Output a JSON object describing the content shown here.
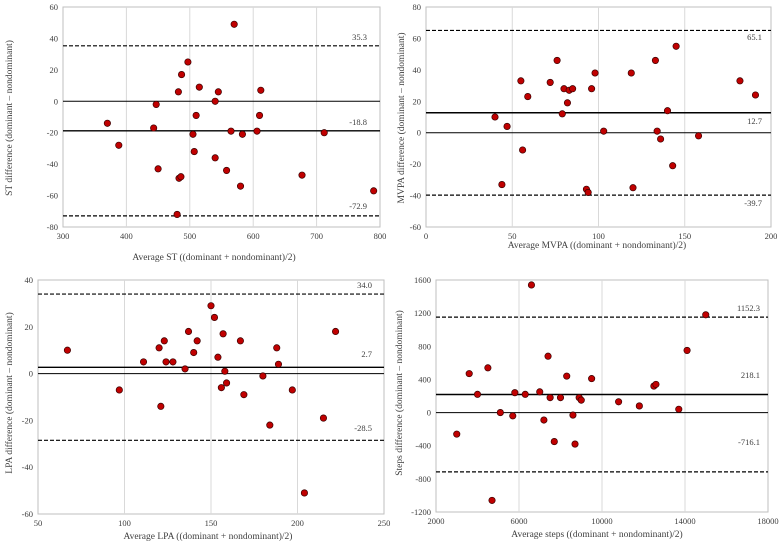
{
  "chart_data": [
    {
      "id": "st",
      "type": "scatter",
      "title": "",
      "xlabel": "Average ST ((dominant + nondominant)/2)",
      "ylabel": "ST difference (dominant – nondominant)",
      "xlim": [
        300,
        800
      ],
      "ylim": [
        -80,
        60
      ],
      "xticks": [
        300,
        400,
        500,
        600,
        700,
        800
      ],
      "yticks": [
        -80,
        -60,
        -40,
        -20,
        0,
        20,
        40,
        60
      ],
      "mean": -18.8,
      "upper_loa": 35.3,
      "lower_loa": -72.9,
      "mean_label": "-18.8",
      "upper_label": "35.3",
      "lower_label": "-72.9",
      "points": [
        [
          370,
          -14
        ],
        [
          388,
          -28
        ],
        [
          443,
          -17
        ],
        [
          447,
          -2
        ],
        [
          450,
          -43
        ],
        [
          480,
          -72
        ],
        [
          482,
          6
        ],
        [
          483,
          -49
        ],
        [
          486,
          -48
        ],
        [
          487,
          17
        ],
        [
          497,
          25
        ],
        [
          505,
          -21
        ],
        [
          507,
          -32
        ],
        [
          510,
          -9
        ],
        [
          515,
          9
        ],
        [
          540,
          -36
        ],
        [
          540,
          0
        ],
        [
          545,
          6
        ],
        [
          558,
          -44
        ],
        [
          565,
          -19
        ],
        [
          570,
          49
        ],
        [
          580,
          -54
        ],
        [
          583,
          -21
        ],
        [
          606,
          -19
        ],
        [
          610,
          -9
        ],
        [
          612,
          7
        ],
        [
          677,
          -47
        ],
        [
          712,
          -20
        ],
        [
          790,
          -57
        ]
      ]
    },
    {
      "id": "mvpa",
      "type": "scatter",
      "title": "",
      "xlabel": "Average MVPA ((dominant + nondominant)/2)",
      "ylabel": "MVPA difference (dominant – nondominant)",
      "xlim": [
        0,
        200
      ],
      "ylim": [
        -60,
        80
      ],
      "xticks": [
        0,
        50,
        100,
        150,
        200
      ],
      "yticks": [
        -60,
        -40,
        -20,
        0,
        20,
        40,
        60,
        80
      ],
      "mean": 12.7,
      "upper_loa": 65.1,
      "lower_loa": -39.7,
      "mean_label": "12.7",
      "upper_label": "65.1",
      "lower_label": "-39.7",
      "points": [
        [
          40,
          10
        ],
        [
          44,
          -33
        ],
        [
          47,
          4
        ],
        [
          55,
          33
        ],
        [
          56,
          -11
        ],
        [
          59,
          23
        ],
        [
          72,
          32
        ],
        [
          76,
          46
        ],
        [
          79,
          12
        ],
        [
          80,
          28
        ],
        [
          82,
          19
        ],
        [
          83,
          27
        ],
        [
          85,
          28
        ],
        [
          93,
          -36
        ],
        [
          94,
          -38
        ],
        [
          96,
          28
        ],
        [
          98,
          38
        ],
        [
          103,
          1
        ],
        [
          119,
          38
        ],
        [
          120,
          -35
        ],
        [
          133,
          46
        ],
        [
          134,
          1
        ],
        [
          136,
          -4
        ],
        [
          140,
          14
        ],
        [
          143,
          -21
        ],
        [
          145,
          55
        ],
        [
          158,
          -2
        ],
        [
          182,
          33
        ],
        [
          191,
          24
        ]
      ]
    },
    {
      "id": "lpa",
      "type": "scatter",
      "title": "",
      "xlabel": "Average LPA ((dominant + nondominant)/2)",
      "ylabel": "LPA difference (dominant – nondominant)",
      "xlim": [
        50,
        250
      ],
      "ylim": [
        -60,
        40
      ],
      "xticks": [
        50,
        100,
        150,
        200,
        250
      ],
      "yticks": [
        -60,
        -40,
        -20,
        0,
        20,
        40
      ],
      "mean": 2.7,
      "upper_loa": 34.0,
      "lower_loa": -28.5,
      "mean_label": "2.7",
      "upper_label": "34.0",
      "lower_label": "-28.5",
      "points": [
        [
          67,
          10
        ],
        [
          97,
          -7
        ],
        [
          111,
          5
        ],
        [
          120,
          11
        ],
        [
          121,
          -14
        ],
        [
          123,
          14
        ],
        [
          124,
          5
        ],
        [
          128,
          5
        ],
        [
          135,
          2
        ],
        [
          137,
          18
        ],
        [
          140,
          9
        ],
        [
          142,
          14
        ],
        [
          150,
          29
        ],
        [
          152,
          24
        ],
        [
          154,
          7
        ],
        [
          156,
          -6
        ],
        [
          157,
          17
        ],
        [
          158,
          1
        ],
        [
          159,
          -4
        ],
        [
          167,
          14
        ],
        [
          169,
          -9
        ],
        [
          180,
          -1
        ],
        [
          184,
          -22
        ],
        [
          188,
          11
        ],
        [
          189,
          4
        ],
        [
          197,
          -7
        ],
        [
          204,
          -51
        ],
        [
          215,
          -19
        ],
        [
          222,
          18
        ]
      ]
    },
    {
      "id": "steps",
      "type": "scatter",
      "title": "",
      "xlabel": "Average steps ((dominant + nondominant)/2)",
      "ylabel": "Steps difference (dominant – nondominant)",
      "xlim": [
        2000,
        18000
      ],
      "ylim": [
        -1200,
        1600
      ],
      "xticks": [
        2000,
        6000,
        10000,
        14000,
        18000
      ],
      "yticks": [
        -1200,
        -800,
        -400,
        0,
        400,
        800,
        1200,
        1600
      ],
      "mean": 218.1,
      "upper_loa": 1152.3,
      "lower_loa": -716.1,
      "mean_label": "218.1",
      "upper_label": "1152.3",
      "lower_label": "-716.1",
      "points": [
        [
          3000,
          -260
        ],
        [
          3600,
          470
        ],
        [
          4000,
          220
        ],
        [
          4500,
          540
        ],
        [
          4700,
          -1060
        ],
        [
          5100,
          0
        ],
        [
          5700,
          -40
        ],
        [
          5800,
          240
        ],
        [
          6300,
          220
        ],
        [
          6600,
          1540
        ],
        [
          7000,
          250
        ],
        [
          7200,
          -90
        ],
        [
          7400,
          680
        ],
        [
          7500,
          180
        ],
        [
          7700,
          -350
        ],
        [
          8000,
          180
        ],
        [
          8300,
          440
        ],
        [
          8600,
          -30
        ],
        [
          8700,
          -380
        ],
        [
          8900,
          180
        ],
        [
          9000,
          150
        ],
        [
          9500,
          410
        ],
        [
          10800,
          130
        ],
        [
          11800,
          80
        ],
        [
          12500,
          320
        ],
        [
          12600,
          340
        ],
        [
          13700,
          40
        ],
        [
          14100,
          750
        ],
        [
          15000,
          1180
        ]
      ]
    }
  ]
}
